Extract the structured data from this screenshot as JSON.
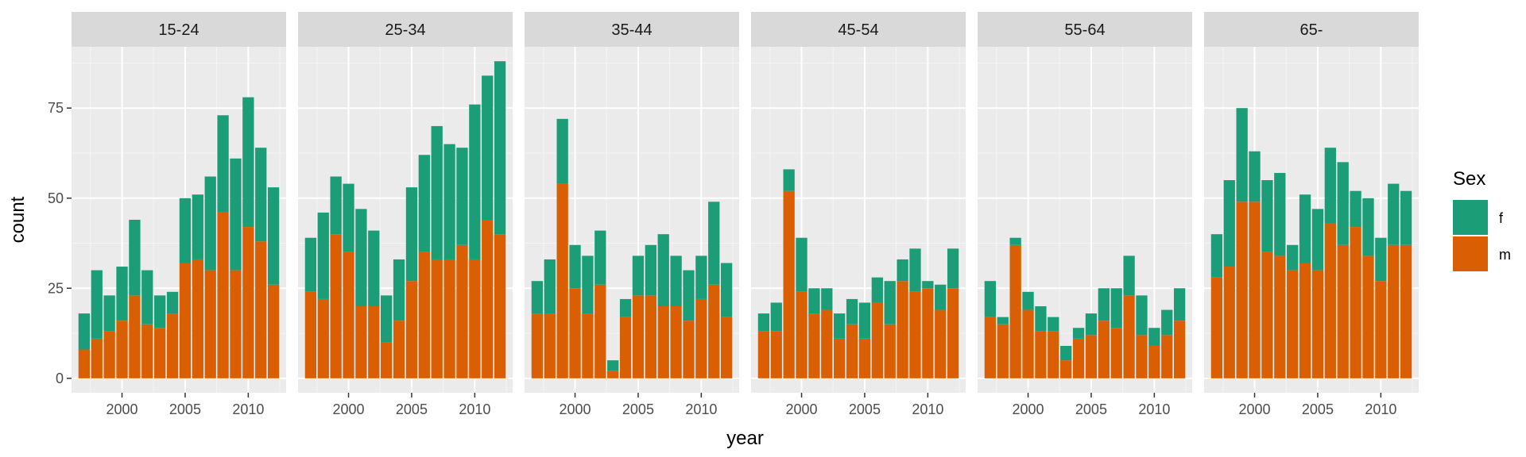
{
  "chart_data": {
    "type": "bar",
    "stacked": true,
    "facet_by": "age group",
    "xlabel": "year",
    "ylabel": "count",
    "x_ticks": [
      2000,
      2005,
      2010
    ],
    "y_ticks": [
      0,
      25,
      50,
      75
    ],
    "xlim": [
      1996,
      2013
    ],
    "ylim": [
      -4,
      92
    ],
    "grid": true,
    "legend": {
      "title": "Sex",
      "position": "right",
      "entries": [
        {
          "key": "f",
          "label": "f",
          "color": "#1b9e77"
        },
        {
          "key": "m",
          "label": "m",
          "color": "#d95f02"
        }
      ]
    },
    "years": [
      1997,
      1998,
      1999,
      2000,
      2001,
      2002,
      2003,
      2004,
      2005,
      2006,
      2007,
      2008,
      2009,
      2010,
      2011,
      2012
    ],
    "facets": [
      {
        "label": "15-24",
        "m": [
          8,
          11,
          13,
          16,
          23,
          15,
          14,
          18,
          32,
          33,
          30,
          46,
          30,
          42,
          38,
          26
        ],
        "f": [
          10,
          19,
          10,
          15,
          21,
          15,
          9,
          6,
          18,
          18,
          26,
          27,
          31,
          36,
          26,
          27
        ]
      },
      {
        "label": "25-34",
        "m": [
          24,
          22,
          40,
          35,
          20,
          20,
          10,
          16,
          27,
          35,
          33,
          33,
          37,
          33,
          44,
          40
        ],
        "f": [
          15,
          24,
          16,
          19,
          27,
          21,
          13,
          17,
          26,
          27,
          37,
          32,
          27,
          43,
          40,
          48
        ]
      },
      {
        "label": "35-44",
        "m": [
          18,
          18,
          54,
          25,
          18,
          26,
          2,
          17,
          23,
          23,
          20,
          20,
          16,
          22,
          26,
          17
        ],
        "f": [
          9,
          15,
          18,
          12,
          16,
          15,
          3,
          5,
          11,
          14,
          20,
          14,
          14,
          12,
          23,
          15
        ]
      },
      {
        "label": "45-54",
        "m": [
          13,
          13,
          52,
          24,
          18,
          19,
          11,
          15,
          11,
          21,
          15,
          27,
          24,
          25,
          19,
          25
        ],
        "f": [
          5,
          8,
          6,
          15,
          7,
          6,
          7,
          7,
          10,
          7,
          12,
          6,
          12,
          2,
          7,
          11
        ]
      },
      {
        "label": "55-64",
        "m": [
          17,
          15,
          37,
          19,
          13,
          13,
          5,
          11,
          12,
          16,
          14,
          23,
          12,
          9,
          12,
          16
        ],
        "f": [
          10,
          2,
          2,
          5,
          7,
          4,
          4,
          3,
          6,
          9,
          11,
          11,
          11,
          5,
          7,
          9
        ]
      },
      {
        "label": "65-",
        "m": [
          28,
          31,
          49,
          49,
          35,
          34,
          30,
          32,
          30,
          43,
          37,
          42,
          34,
          27,
          37,
          37
        ],
        "f": [
          12,
          24,
          26,
          14,
          20,
          23,
          7,
          19,
          17,
          21,
          23,
          10,
          16,
          12,
          17,
          15
        ]
      }
    ]
  }
}
